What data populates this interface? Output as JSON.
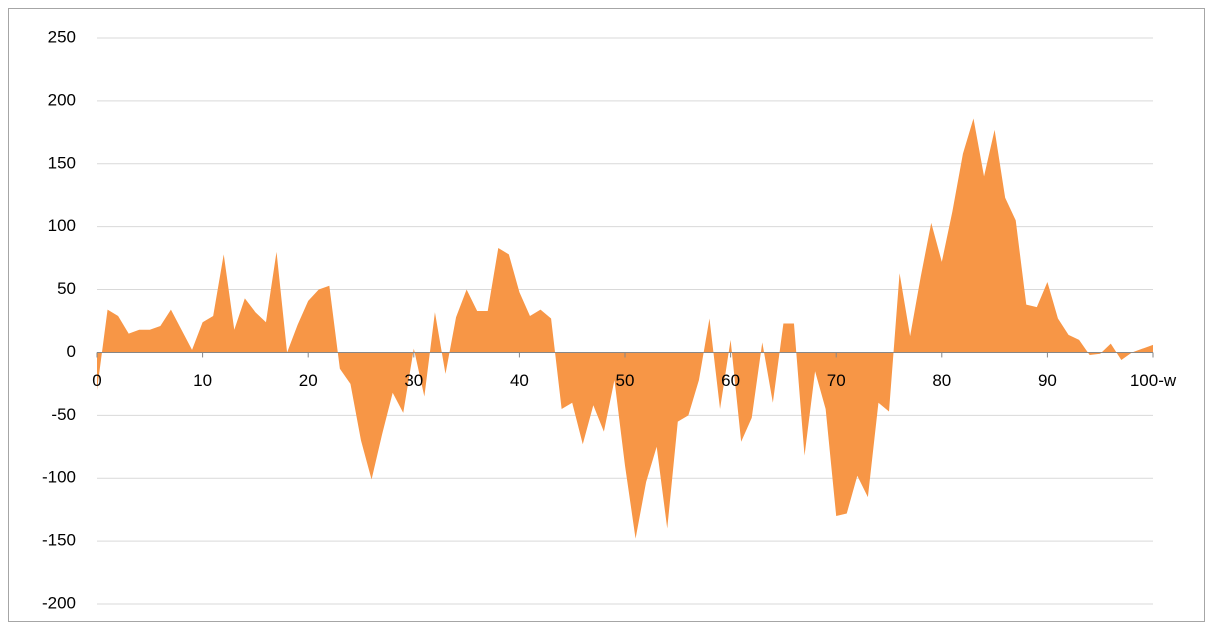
{
  "chart_data": {
    "type": "area",
    "x": [
      0,
      1,
      2,
      3,
      4,
      5,
      6,
      7,
      8,
      9,
      10,
      11,
      12,
      13,
      14,
      15,
      16,
      17,
      18,
      19,
      20,
      21,
      22,
      23,
      24,
      25,
      26,
      27,
      28,
      29,
      30,
      31,
      32,
      33,
      34,
      35,
      36,
      37,
      38,
      39,
      40,
      41,
      42,
      43,
      44,
      45,
      46,
      47,
      48,
      49,
      50,
      51,
      52,
      53,
      54,
      55,
      56,
      57,
      58,
      59,
      60,
      61,
      62,
      63,
      64,
      65,
      66,
      67,
      68,
      69,
      70,
      71,
      72,
      73,
      74,
      75,
      76,
      77,
      78,
      79,
      80,
      81,
      82,
      83,
      84,
      85,
      86,
      87,
      88,
      89,
      90,
      91,
      92,
      93,
      94,
      95,
      96,
      97,
      98,
      99,
      100
    ],
    "values": [
      -30,
      34,
      29,
      15,
      18,
      18,
      21,
      34,
      18,
      2,
      24,
      29,
      78,
      18,
      43,
      32,
      24,
      80,
      0,
      22,
      41,
      50,
      53,
      -13,
      -25,
      -70,
      -101,
      -65,
      -32,
      -48,
      3,
      -35,
      32,
      -17,
      28,
      50,
      33,
      33,
      83,
      78,
      48,
      29,
      34,
      27,
      -45,
      -40,
      -73,
      -42,
      -63,
      -22,
      -90,
      -148,
      -103,
      -75,
      -140,
      -55,
      -50,
      -22,
      27,
      -45,
      10,
      -71,
      -52,
      8,
      -40,
      23,
      23,
      -82,
      -15,
      -45,
      -130,
      -128,
      -98,
      -115,
      -40,
      -47,
      63,
      13,
      60,
      103,
      72,
      112,
      158,
      186,
      140,
      177,
      123,
      105,
      38,
      36,
      56,
      27,
      14,
      10,
      -2,
      -1,
      7,
      -6,
      0,
      3,
      6
    ],
    "color": "#f79646",
    "xlim": [
      0,
      100
    ],
    "xticks": [
      0,
      10,
      20,
      30,
      40,
      50,
      60,
      70,
      80,
      90,
      {
        "value": 100,
        "label": "100-w"
      }
    ],
    "ylim": [
      -200,
      250
    ],
    "yticks": [
      -200,
      -150,
      -100,
      -50,
      0,
      50,
      100,
      150,
      200,
      250
    ],
    "grid": true
  }
}
